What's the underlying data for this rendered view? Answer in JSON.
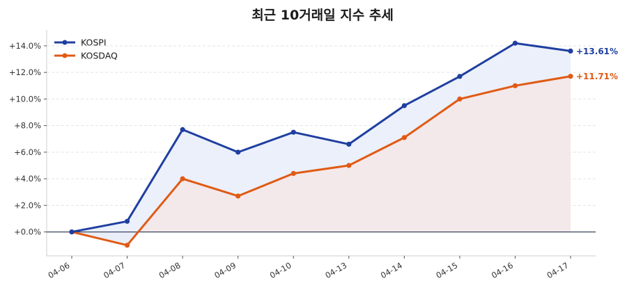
{
  "chart_data": {
    "type": "line",
    "title": "최근 10거래일 지수 추세",
    "categories": [
      "04-06",
      "04-07",
      "04-08",
      "04-09",
      "04-10",
      "04-13",
      "04-14",
      "04-15",
      "04-16",
      "04-17"
    ],
    "ylim": [
      -1.8,
      15.2
    ],
    "yticks": [
      0,
      2,
      4,
      6,
      8,
      10,
      12,
      14
    ],
    "ytick_labels": [
      "+0.0%",
      "+2.0%",
      "+4.0%",
      "+6.0%",
      "+8.0%",
      "+10.0%",
      "+12.0%",
      "+14.0%"
    ],
    "grid": true,
    "legend_position": "top-left",
    "series": [
      {
        "name": "KOSPI",
        "color": "#1f3fa0",
        "fill": "#e9eef9",
        "values": [
          0.0,
          0.8,
          7.7,
          6.0,
          7.5,
          6.6,
          9.5,
          11.7,
          14.2,
          13.61
        ],
        "end_label": "+13.61%"
      },
      {
        "name": "KOSDAQ",
        "color": "#e05a14",
        "fill": "#f2e6e8",
        "values": [
          0.0,
          -1.0,
          4.0,
          2.7,
          4.4,
          5.0,
          7.1,
          10.0,
          11.0,
          11.71
        ],
        "end_label": "+11.71%"
      }
    ]
  }
}
